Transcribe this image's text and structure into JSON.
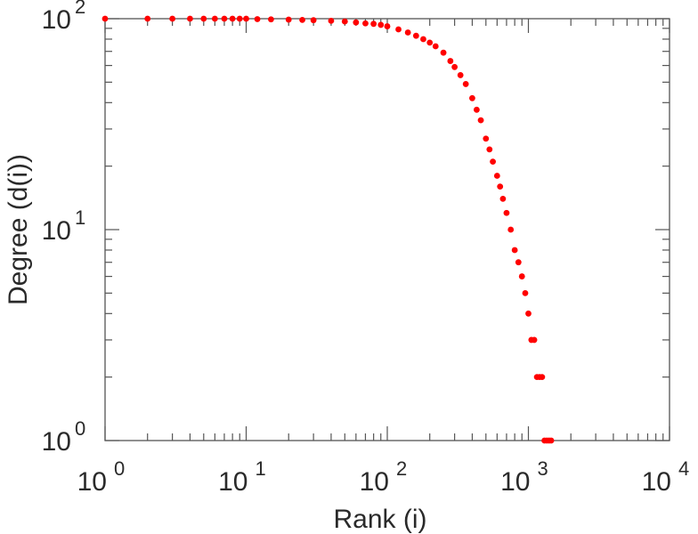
{
  "chart_data": {
    "type": "scatter",
    "title": "",
    "xlabel": "Rank (i)",
    "ylabel": "Degree (d(i))",
    "xscale": "log",
    "yscale": "log",
    "xlim": [
      1,
      10000
    ],
    "ylim": [
      1,
      100
    ],
    "grid": false,
    "legend": "none",
    "marker_color": "#ff0000",
    "x_ticks": [
      {
        "value": 1,
        "base": "10",
        "exp": "0"
      },
      {
        "value": 10,
        "base": "10",
        "exp": "1"
      },
      {
        "value": 100,
        "base": "10",
        "exp": "2"
      },
      {
        "value": 1000,
        "base": "10",
        "exp": "3"
      },
      {
        "value": 10000,
        "base": "10",
        "exp": "4"
      }
    ],
    "y_ticks": [
      {
        "value": 1,
        "base": "10",
        "exp": "0"
      },
      {
        "value": 10,
        "base": "10",
        "exp": "1"
      },
      {
        "value": 100,
        "base": "10",
        "exp": "2"
      }
    ],
    "series": [
      {
        "points": [
          [
            1,
            100
          ],
          [
            2,
            100
          ],
          [
            3,
            100
          ],
          [
            4,
            100
          ],
          [
            5,
            100
          ],
          [
            6,
            100
          ],
          [
            7,
            100
          ],
          [
            8,
            100
          ],
          [
            9,
            100
          ],
          [
            10,
            100
          ],
          [
            12,
            99.5
          ],
          [
            15,
            99.3
          ],
          [
            20,
            99
          ],
          [
            25,
            98.7
          ],
          [
            30,
            98.4
          ],
          [
            40,
            97.7
          ],
          [
            50,
            97
          ],
          [
            60,
            96
          ],
          [
            70,
            95
          ],
          [
            80,
            94.5
          ],
          [
            90,
            93.5
          ],
          [
            100,
            92
          ],
          [
            120,
            89
          ],
          [
            140,
            86
          ],
          [
            160,
            83
          ],
          [
            180,
            80
          ],
          [
            200,
            77
          ],
          [
            220,
            74
          ],
          [
            250,
            69
          ],
          [
            280,
            63
          ],
          [
            300,
            59
          ],
          [
            330,
            54
          ],
          [
            360,
            49
          ],
          [
            400,
            42
          ],
          [
            430,
            37
          ],
          [
            460,
            33
          ],
          [
            500,
            27
          ],
          [
            530,
            24
          ],
          [
            560,
            21
          ],
          [
            600,
            18
          ],
          [
            630,
            16
          ],
          [
            660,
            14
          ],
          [
            700,
            12
          ],
          [
            750,
            10
          ],
          [
            800,
            8
          ],
          [
            850,
            7
          ],
          [
            900,
            6
          ],
          [
            950,
            5
          ],
          [
            1000,
            4
          ],
          [
            1050,
            3
          ],
          [
            1100,
            3
          ],
          [
            1150,
            2
          ],
          [
            1200,
            2
          ],
          [
            1250,
            2
          ],
          [
            1300,
            1
          ],
          [
            1350,
            1
          ],
          [
            1400,
            1
          ],
          [
            1450,
            1
          ]
        ]
      }
    ]
  }
}
